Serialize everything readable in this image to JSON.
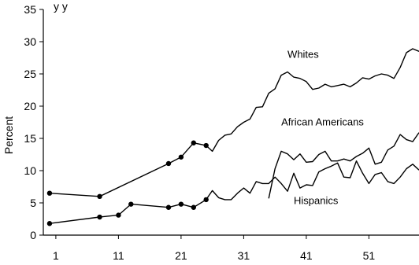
{
  "chart_data": {
    "type": "line",
    "title_fragment": "y                              y",
    "ylabel": "Percent",
    "xlabel": "",
    "ylim": [
      0,
      35
    ],
    "xlim": [
      -1,
      59
    ],
    "yticks": [
      0,
      5,
      10,
      15,
      20,
      25,
      30,
      35
    ],
    "xticks": [
      1,
      11,
      21,
      31,
      41,
      51
    ],
    "grid": false,
    "legend": "inline labels",
    "series": [
      {
        "name": "Whites",
        "label_anchor": [
          38,
          27.5
        ],
        "marker_points": [
          {
            "x": 0,
            "y": 6.5
          },
          {
            "x": 8,
            "y": 6.0
          },
          {
            "x": 19,
            "y": 11.1
          },
          {
            "x": 21,
            "y": 12.1
          },
          {
            "x": 23,
            "y": 14.3
          },
          {
            "x": 25,
            "y": 13.9
          }
        ],
        "points": [
          {
            "x": 0,
            "y": 6.5
          },
          {
            "x": 8,
            "y": 6.0
          },
          {
            "x": 19,
            "y": 11.1
          },
          {
            "x": 21,
            "y": 12.1
          },
          {
            "x": 23,
            "y": 14.3
          },
          {
            "x": 25,
            "y": 13.9
          },
          {
            "x": 26,
            "y": 13.0
          },
          {
            "x": 27,
            "y": 14.7
          },
          {
            "x": 28,
            "y": 15.5
          },
          {
            "x": 29,
            "y": 15.7
          },
          {
            "x": 30,
            "y": 16.8
          },
          {
            "x": 31,
            "y": 17.5
          },
          {
            "x": 32,
            "y": 18.0
          },
          {
            "x": 33,
            "y": 19.8
          },
          {
            "x": 34,
            "y": 19.9
          },
          {
            "x": 35,
            "y": 22.0
          },
          {
            "x": 36,
            "y": 22.7
          },
          {
            "x": 37,
            "y": 24.8
          },
          {
            "x": 38,
            "y": 25.3
          },
          {
            "x": 39,
            "y": 24.5
          },
          {
            "x": 40,
            "y": 24.3
          },
          {
            "x": 41,
            "y": 23.8
          },
          {
            "x": 42,
            "y": 22.6
          },
          {
            "x": 43,
            "y": 22.8
          },
          {
            "x": 44,
            "y": 23.4
          },
          {
            "x": 45,
            "y": 23.0
          },
          {
            "x": 46,
            "y": 23.2
          },
          {
            "x": 47,
            "y": 23.4
          },
          {
            "x": 48,
            "y": 23.0
          },
          {
            "x": 49,
            "y": 23.6
          },
          {
            "x": 50,
            "y": 24.4
          },
          {
            "x": 51,
            "y": 24.2
          },
          {
            "x": 52,
            "y": 24.7
          },
          {
            "x": 53,
            "y": 25.0
          },
          {
            "x": 54,
            "y": 24.8
          },
          {
            "x": 55,
            "y": 24.3
          },
          {
            "x": 56,
            "y": 26.0
          },
          {
            "x": 57,
            "y": 28.3
          },
          {
            "x": 58,
            "y": 28.9
          },
          {
            "x": 59,
            "y": 28.5
          }
        ]
      },
      {
        "name": "African Americans",
        "label_anchor": [
          37,
          17.0
        ],
        "marker_points": [],
        "points": [
          {
            "x": 35,
            "y": 5.7
          },
          {
            "x": 36,
            "y": 10.3
          },
          {
            "x": 37,
            "y": 13.0
          },
          {
            "x": 38,
            "y": 12.6
          },
          {
            "x": 39,
            "y": 11.7
          },
          {
            "x": 40,
            "y": 12.6
          },
          {
            "x": 41,
            "y": 11.3
          },
          {
            "x": 42,
            "y": 11.4
          },
          {
            "x": 43,
            "y": 12.5
          },
          {
            "x": 44,
            "y": 13.0
          },
          {
            "x": 45,
            "y": 11.5
          },
          {
            "x": 46,
            "y": 11.5
          },
          {
            "x": 47,
            "y": 11.8
          },
          {
            "x": 48,
            "y": 11.5
          },
          {
            "x": 49,
            "y": 12.2
          },
          {
            "x": 50,
            "y": 12.7
          },
          {
            "x": 51,
            "y": 13.5
          },
          {
            "x": 52,
            "y": 11.0
          },
          {
            "x": 53,
            "y": 11.3
          },
          {
            "x": 54,
            "y": 13.2
          },
          {
            "x": 55,
            "y": 13.8
          },
          {
            "x": 56,
            "y": 15.6
          },
          {
            "x": 57,
            "y": 14.8
          },
          {
            "x": 58,
            "y": 14.5
          },
          {
            "x": 59,
            "y": 15.9
          }
        ]
      },
      {
        "name": "Hispanics",
        "label_anchor": [
          39,
          4.8
        ],
        "marker_points": [
          {
            "x": 0,
            "y": 1.8
          },
          {
            "x": 8,
            "y": 2.8
          },
          {
            "x": 11,
            "y": 3.1
          },
          {
            "x": 13,
            "y": 4.8
          },
          {
            "x": 19,
            "y": 4.3
          },
          {
            "x": 21,
            "y": 4.8
          },
          {
            "x": 23,
            "y": 4.3
          },
          {
            "x": 25,
            "y": 5.5
          }
        ],
        "points": [
          {
            "x": 0,
            "y": 1.8
          },
          {
            "x": 8,
            "y": 2.8
          },
          {
            "x": 11,
            "y": 3.1
          },
          {
            "x": 13,
            "y": 4.8
          },
          {
            "x": 19,
            "y": 4.3
          },
          {
            "x": 21,
            "y": 4.8
          },
          {
            "x": 23,
            "y": 4.3
          },
          {
            "x": 25,
            "y": 5.5
          },
          {
            "x": 26,
            "y": 6.9
          },
          {
            "x": 27,
            "y": 5.8
          },
          {
            "x": 28,
            "y": 5.5
          },
          {
            "x": 29,
            "y": 5.5
          },
          {
            "x": 30,
            "y": 6.5
          },
          {
            "x": 31,
            "y": 7.3
          },
          {
            "x": 32,
            "y": 6.5
          },
          {
            "x": 33,
            "y": 8.3
          },
          {
            "x": 34,
            "y": 8.0
          },
          {
            "x": 35,
            "y": 8.0
          },
          {
            "x": 36,
            "y": 9.0
          },
          {
            "x": 37,
            "y": 8.0
          },
          {
            "x": 38,
            "y": 6.8
          },
          {
            "x": 39,
            "y": 9.6
          },
          {
            "x": 40,
            "y": 7.3
          },
          {
            "x": 41,
            "y": 7.8
          },
          {
            "x": 42,
            "y": 7.7
          },
          {
            "x": 43,
            "y": 9.8
          },
          {
            "x": 44,
            "y": 10.3
          },
          {
            "x": 45,
            "y": 10.7
          },
          {
            "x": 46,
            "y": 11.2
          },
          {
            "x": 47,
            "y": 9.0
          },
          {
            "x": 48,
            "y": 8.9
          },
          {
            "x": 49,
            "y": 11.5
          },
          {
            "x": 50,
            "y": 9.6
          },
          {
            "x": 51,
            "y": 8.0
          },
          {
            "x": 52,
            "y": 9.4
          },
          {
            "x": 53,
            "y": 9.7
          },
          {
            "x": 54,
            "y": 8.3
          },
          {
            "x": 55,
            "y": 8.0
          },
          {
            "x": 56,
            "y": 9.0
          },
          {
            "x": 57,
            "y": 10.3
          },
          {
            "x": 58,
            "y": 11.0
          },
          {
            "x": 59,
            "y": 10.1
          }
        ]
      }
    ]
  }
}
